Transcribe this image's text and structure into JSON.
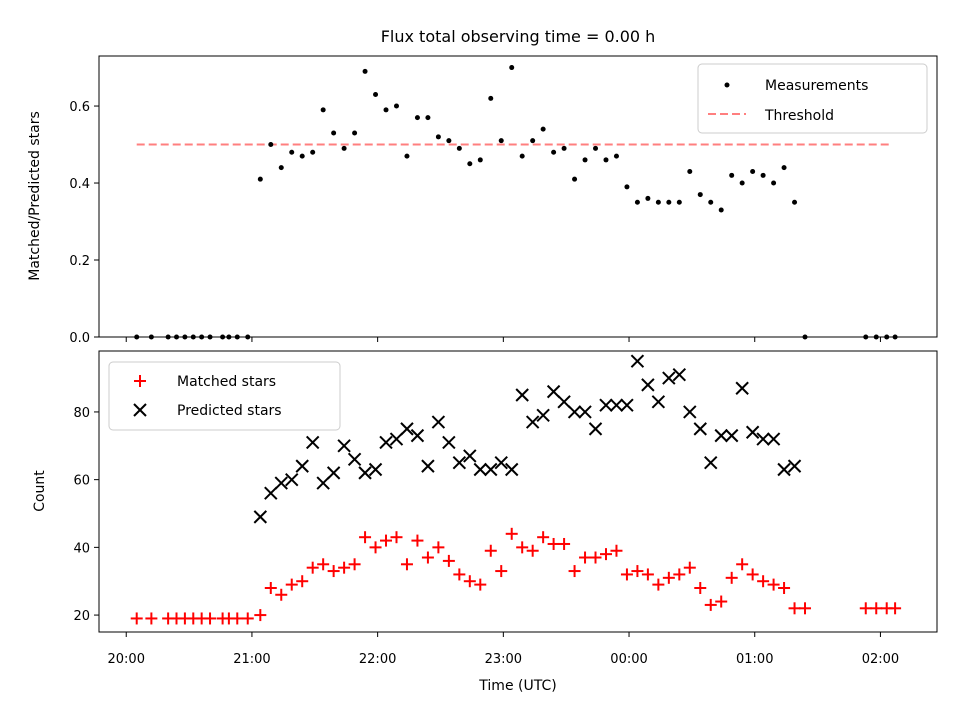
{
  "chart_data": [
    {
      "type": "scatter",
      "title": "Flux total observing time = 0.00 h",
      "ylabel": "Matched/Predicted stars",
      "xlabel": "",
      "ylim": [
        0,
        0.73
      ],
      "yticks": [
        "0.0",
        "0.2",
        "0.4",
        "0.6"
      ],
      "x_range": [
        "19:47",
        "02:27"
      ],
      "legend_position": "top-right",
      "threshold": {
        "name": "Threshold",
        "value": 0.5,
        "x": [
          "20:05",
          "02:05"
        ],
        "color": "#ff7f7f",
        "style": "dashed"
      },
      "series": [
        {
          "name": "Measurements",
          "marker": "dot",
          "color": "#000000",
          "points": [
            [
              "20:05",
              0.0
            ],
            [
              "20:12",
              0.0
            ],
            [
              "20:20",
              0.0
            ],
            [
              "20:24",
              0.0
            ],
            [
              "20:28",
              0.0
            ],
            [
              "20:32",
              0.0
            ],
            [
              "20:36",
              0.0
            ],
            [
              "20:40",
              0.0
            ],
            [
              "20:46",
              0.0
            ],
            [
              "20:49",
              0.0
            ],
            [
              "20:53",
              0.0
            ],
            [
              "20:58",
              0.0
            ],
            [
              "21:04",
              0.41
            ],
            [
              "21:09",
              0.5
            ],
            [
              "21:14",
              0.44
            ],
            [
              "21:19",
              0.48
            ],
            [
              "21:24",
              0.47
            ],
            [
              "21:29",
              0.48
            ],
            [
              "21:34",
              0.59
            ],
            [
              "21:39",
              0.53
            ],
            [
              "21:44",
              0.49
            ],
            [
              "21:49",
              0.53
            ],
            [
              "21:54",
              0.69
            ],
            [
              "21:59",
              0.63
            ],
            [
              "22:04",
              0.59
            ],
            [
              "22:09",
              0.6
            ],
            [
              "22:14",
              0.47
            ],
            [
              "22:19",
              0.57
            ],
            [
              "22:24",
              0.57
            ],
            [
              "22:29",
              0.52
            ],
            [
              "22:34",
              0.51
            ],
            [
              "22:39",
              0.49
            ],
            [
              "22:44",
              0.45
            ],
            [
              "22:49",
              0.46
            ],
            [
              "22:54",
              0.62
            ],
            [
              "22:59",
              0.51
            ],
            [
              "23:04",
              0.7
            ],
            [
              "23:09",
              0.47
            ],
            [
              "23:14",
              0.51
            ],
            [
              "23:19",
              0.54
            ],
            [
              "23:24",
              0.48
            ],
            [
              "23:29",
              0.49
            ],
            [
              "23:34",
              0.41
            ],
            [
              "23:39",
              0.46
            ],
            [
              "23:44",
              0.49
            ],
            [
              "23:49",
              0.46
            ],
            [
              "23:54",
              0.47
            ],
            [
              "23:59",
              0.39
            ],
            [
              "00:04",
              0.35
            ],
            [
              "00:09",
              0.36
            ],
            [
              "00:14",
              0.35
            ],
            [
              "00:19",
              0.35
            ],
            [
              "00:24",
              0.35
            ],
            [
              "00:29",
              0.43
            ],
            [
              "00:34",
              0.37
            ],
            [
              "00:39",
              0.35
            ],
            [
              "00:44",
              0.33
            ],
            [
              "00:49",
              0.42
            ],
            [
              "00:54",
              0.4
            ],
            [
              "00:59",
              0.43
            ],
            [
              "01:04",
              0.42
            ],
            [
              "01:09",
              0.4
            ],
            [
              "01:14",
              0.44
            ],
            [
              "01:19",
              0.35
            ],
            [
              "01:24",
              0.0
            ],
            [
              "01:53",
              0.0
            ],
            [
              "01:58",
              0.0
            ],
            [
              "02:03",
              0.0
            ],
            [
              "02:07",
              0.0
            ]
          ]
        }
      ]
    },
    {
      "type": "scatter",
      "title": "",
      "ylabel": "Count",
      "xlabel": "Time (UTC)",
      "ylim": [
        15,
        98
      ],
      "yticks": [
        "20",
        "40",
        "60",
        "80"
      ],
      "x_range": [
        "19:47",
        "02:27"
      ],
      "xticks": [
        "20:00",
        "21:00",
        "22:00",
        "23:00",
        "00:00",
        "01:00",
        "02:00"
      ],
      "legend_position": "top-left",
      "series": [
        {
          "name": "Matched stars",
          "marker": "plus",
          "color": "#ff0000",
          "points": [
            [
              "20:05",
              19
            ],
            [
              "20:12",
              19
            ],
            [
              "20:20",
              19
            ],
            [
              "20:24",
              19
            ],
            [
              "20:28",
              19
            ],
            [
              "20:32",
              19
            ],
            [
              "20:36",
              19
            ],
            [
              "20:40",
              19
            ],
            [
              "20:46",
              19
            ],
            [
              "20:49",
              19
            ],
            [
              "20:53",
              19
            ],
            [
              "20:58",
              19
            ],
            [
              "21:04",
              20
            ],
            [
              "21:09",
              28
            ],
            [
              "21:14",
              26
            ],
            [
              "21:19",
              29
            ],
            [
              "21:24",
              30
            ],
            [
              "21:29",
              34
            ],
            [
              "21:34",
              35
            ],
            [
              "21:39",
              33
            ],
            [
              "21:44",
              34
            ],
            [
              "21:49",
              35
            ],
            [
              "21:54",
              43
            ],
            [
              "21:59",
              40
            ],
            [
              "22:04",
              42
            ],
            [
              "22:09",
              43
            ],
            [
              "22:14",
              35
            ],
            [
              "22:19",
              42
            ],
            [
              "22:24",
              37
            ],
            [
              "22:29",
              40
            ],
            [
              "22:34",
              36
            ],
            [
              "22:39",
              32
            ],
            [
              "22:44",
              30
            ],
            [
              "22:49",
              29
            ],
            [
              "22:54",
              39
            ],
            [
              "22:59",
              33
            ],
            [
              "23:04",
              44
            ],
            [
              "23:09",
              40
            ],
            [
              "23:14",
              39
            ],
            [
              "23:19",
              43
            ],
            [
              "23:24",
              41
            ],
            [
              "23:29",
              41
            ],
            [
              "23:34",
              33
            ],
            [
              "23:39",
              37
            ],
            [
              "23:44",
              37
            ],
            [
              "23:49",
              38
            ],
            [
              "23:54",
              39
            ],
            [
              "23:59",
              32
            ],
            [
              "00:04",
              33
            ],
            [
              "00:09",
              32
            ],
            [
              "00:14",
              29
            ],
            [
              "00:19",
              31
            ],
            [
              "00:24",
              32
            ],
            [
              "00:29",
              34
            ],
            [
              "00:34",
              28
            ],
            [
              "00:39",
              23
            ],
            [
              "00:44",
              24
            ],
            [
              "00:49",
              31
            ],
            [
              "00:54",
              35
            ],
            [
              "00:59",
              32
            ],
            [
              "01:04",
              30
            ],
            [
              "01:09",
              29
            ],
            [
              "01:14",
              28
            ],
            [
              "01:19",
              22
            ],
            [
              "01:24",
              22
            ],
            [
              "01:53",
              22
            ],
            [
              "01:58",
              22
            ],
            [
              "02:03",
              22
            ],
            [
              "02:07",
              22
            ]
          ]
        },
        {
          "name": "Predicted stars",
          "marker": "x",
          "color": "#000000",
          "points": [
            [
              "21:04",
              49
            ],
            [
              "21:09",
              56
            ],
            [
              "21:14",
              59
            ],
            [
              "21:19",
              60
            ],
            [
              "21:24",
              64
            ],
            [
              "21:29",
              71
            ],
            [
              "21:34",
              59
            ],
            [
              "21:39",
              62
            ],
            [
              "21:44",
              70
            ],
            [
              "21:49",
              66
            ],
            [
              "21:54",
              62
            ],
            [
              "21:59",
              63
            ],
            [
              "22:04",
              71
            ],
            [
              "22:09",
              72
            ],
            [
              "22:14",
              75
            ],
            [
              "22:19",
              73
            ],
            [
              "22:24",
              64
            ],
            [
              "22:29",
              77
            ],
            [
              "22:34",
              71
            ],
            [
              "22:39",
              65
            ],
            [
              "22:44",
              67
            ],
            [
              "22:49",
              63
            ],
            [
              "22:54",
              63
            ],
            [
              "22:59",
              65
            ],
            [
              "23:04",
              63
            ],
            [
              "23:09",
              85
            ],
            [
              "23:14",
              77
            ],
            [
              "23:19",
              79
            ],
            [
              "23:24",
              86
            ],
            [
              "23:29",
              83
            ],
            [
              "23:34",
              80
            ],
            [
              "23:39",
              80
            ],
            [
              "23:44",
              75
            ],
            [
              "23:49",
              82
            ],
            [
              "23:54",
              82
            ],
            [
              "23:59",
              82
            ],
            [
              "00:04",
              95
            ],
            [
              "00:09",
              88
            ],
            [
              "00:14",
              83
            ],
            [
              "00:19",
              90
            ],
            [
              "00:24",
              91
            ],
            [
              "00:29",
              80
            ],
            [
              "00:34",
              75
            ],
            [
              "00:39",
              65
            ],
            [
              "00:44",
              73
            ],
            [
              "00:49",
              73
            ],
            [
              "00:54",
              87
            ],
            [
              "00:59",
              74
            ],
            [
              "01:04",
              72
            ],
            [
              "01:09",
              72
            ],
            [
              "01:14",
              63
            ],
            [
              "01:19",
              64
            ]
          ]
        }
      ]
    }
  ]
}
